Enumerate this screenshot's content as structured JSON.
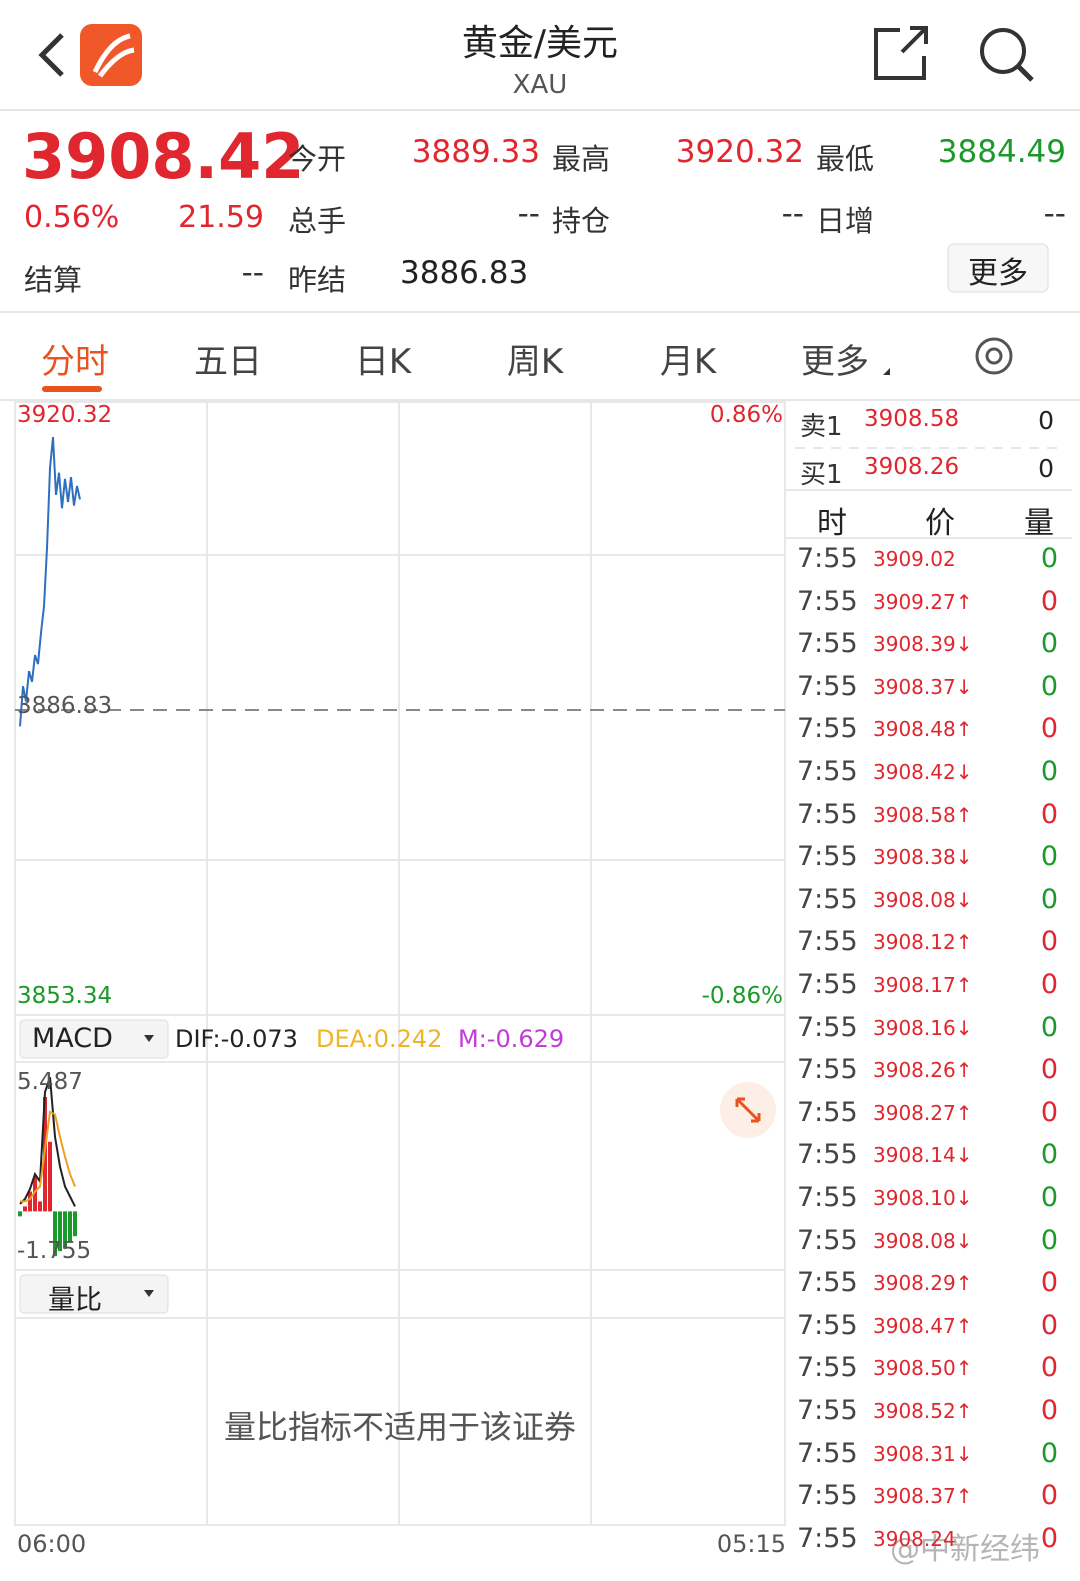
{
  "header": {
    "title": "黄金/美元",
    "subtitle": "XAU"
  },
  "quote": {
    "price": "3908.42",
    "change_pct": "0.56%",
    "change": "21.59",
    "fields": [
      {
        "label": "今开",
        "value": "3889.33",
        "color": "#e0262f"
      },
      {
        "label": "最高",
        "value": "3920.32",
        "color": "#e0262f"
      },
      {
        "label": "最低",
        "value": "3884.49",
        "color": "#1a9a2a"
      },
      {
        "label": "总手",
        "value": "--",
        "color": "#333333"
      },
      {
        "label": "持仓",
        "value": "--",
        "color": "#333333"
      },
      {
        "label": "日增",
        "value": "--",
        "color": "#333333"
      },
      {
        "label": "结算",
        "value": "--",
        "color": "#333333"
      },
      {
        "label": "昨结",
        "value": "3886.83",
        "color": "#222222"
      }
    ],
    "more": "更多"
  },
  "tabs": [
    "分时",
    "五日",
    "日K",
    "周K",
    "月K",
    "更多"
  ],
  "price_chart": {
    "type": "line",
    "color": "#2f6fc0",
    "ylim": [
      3853.34,
      3920.32
    ],
    "reference": 3886.83,
    "y_top_label": "3920.32",
    "y_mid_label": "3886.83",
    "y_bottom_label": "3853.34",
    "pct_top_label": "0.86%",
    "pct_bottom_label": "-0.86%",
    "x_start_label": "06:00",
    "x_end_label": "05:15",
    "values": [
      3885.0,
      3889.5,
      3887.8,
      3891.2,
      3890.0,
      3893.0,
      3892.0,
      3895.5,
      3898.5,
      3905.0,
      3914.0,
      3917.5,
      3911.0,
      3913.5,
      3909.5,
      3912.8,
      3910.2,
      3913.0,
      3909.8,
      3912.0,
      3910.5
    ]
  },
  "macd": {
    "selector": "MACD",
    "dif_label": "DIF:-0.073",
    "dea_label": "DEA:0.242",
    "m_label": "M:-0.629",
    "ylim": [
      -1.755,
      5.487
    ],
    "y_top_label": "5.487",
    "y_bottom_label": "-1.755",
    "dif": [
      0.3,
      0.5,
      0.9,
      1.5,
      1.2,
      4.8,
      5.4,
      3.0,
      1.8,
      1.0,
      0.6,
      0.2
    ],
    "dea": [
      0.4,
      0.4,
      0.5,
      0.8,
      1.0,
      2.5,
      4.0,
      3.9,
      3.0,
      2.2,
      1.5,
      1.0
    ],
    "bars": [
      -0.2,
      0.2,
      0.8,
      1.4,
      0.4,
      4.6,
      2.8,
      -1.8,
      -1.6,
      -1.5,
      -1.2,
      -1.0
    ]
  },
  "volume_ratio": {
    "selector": "量比",
    "message": "量比指标不适用于该证券"
  },
  "order_book": [
    {
      "label": "卖1",
      "price": "3908.58",
      "volume": "0"
    },
    {
      "label": "买1",
      "price": "3908.26",
      "volume": "0"
    }
  ],
  "trades": {
    "headers": [
      "时",
      "价",
      "量"
    ],
    "rows": [
      {
        "time": "7:55",
        "price": "3909.02",
        "volume": "0",
        "color": "#1a9a2a"
      },
      {
        "time": "7:55",
        "price": "3909.27↑",
        "volume": "0",
        "color": "#e0262f"
      },
      {
        "time": "7:55",
        "price": "3908.39↓",
        "volume": "0",
        "color": "#1a9a2a"
      },
      {
        "time": "7:55",
        "price": "3908.37↓",
        "volume": "0",
        "color": "#1a9a2a"
      },
      {
        "time": "7:55",
        "price": "3908.48↑",
        "volume": "0",
        "color": "#e0262f"
      },
      {
        "time": "7:55",
        "price": "3908.42↓",
        "volume": "0",
        "color": "#1a9a2a"
      },
      {
        "time": "7:55",
        "price": "3908.58↑",
        "volume": "0",
        "color": "#e0262f"
      },
      {
        "time": "7:55",
        "price": "3908.38↓",
        "volume": "0",
        "color": "#1a9a2a"
      },
      {
        "time": "7:55",
        "price": "3908.08↓",
        "volume": "0",
        "color": "#1a9a2a"
      },
      {
        "time": "7:55",
        "price": "3908.12↑",
        "volume": "0",
        "color": "#e0262f"
      },
      {
        "time": "7:55",
        "price": "3908.17↑",
        "volume": "0",
        "color": "#e0262f"
      },
      {
        "time": "7:55",
        "price": "3908.16↓",
        "volume": "0",
        "color": "#1a9a2a"
      },
      {
        "time": "7:55",
        "price": "3908.26↑",
        "volume": "0",
        "color": "#e0262f"
      },
      {
        "time": "7:55",
        "price": "3908.27↑",
        "volume": "0",
        "color": "#e0262f"
      },
      {
        "time": "7:55",
        "price": "3908.14↓",
        "volume": "0",
        "color": "#1a9a2a"
      },
      {
        "time": "7:55",
        "price": "3908.10↓",
        "volume": "0",
        "color": "#1a9a2a"
      },
      {
        "time": "7:55",
        "price": "3908.08↓",
        "volume": "0",
        "color": "#1a9a2a"
      },
      {
        "time": "7:55",
        "price": "3908.29↑",
        "volume": "0",
        "color": "#e0262f"
      },
      {
        "time": "7:55",
        "price": "3908.47↑",
        "volume": "0",
        "color": "#e0262f"
      },
      {
        "time": "7:55",
        "price": "3908.50↑",
        "volume": "0",
        "color": "#e0262f"
      },
      {
        "time": "7:55",
        "price": "3908.52↑",
        "volume": "0",
        "color": "#e0262f"
      },
      {
        "time": "7:55",
        "price": "3908.31↓",
        "volume": "0",
        "color": "#1a9a2a"
      },
      {
        "time": "7:55",
        "price": "3908.37↑",
        "volume": "0",
        "color": "#e0262f"
      },
      {
        "time": "7:55",
        "price": "3908.24",
        "volume": "0",
        "color": "#e0262f"
      }
    ]
  },
  "watermark": "@中新经纬"
}
